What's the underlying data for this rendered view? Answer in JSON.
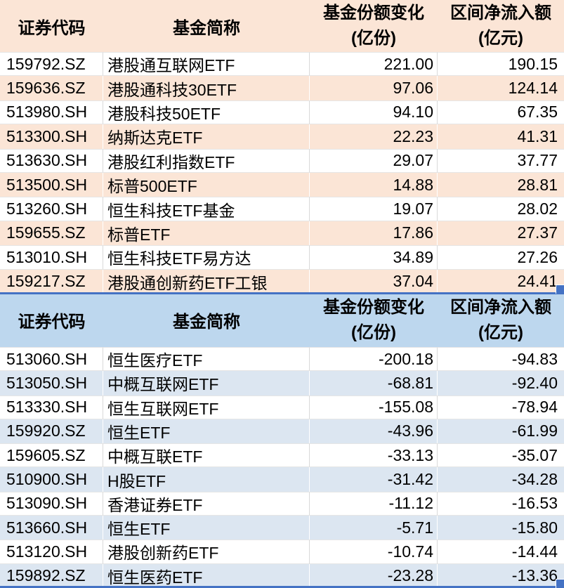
{
  "colors": {
    "orange_band": "#FBE5D6",
    "blue_band": "#DCE6F1",
    "blue_header": "#BDD7EE",
    "selection_blue": "#4472C4",
    "gridline_gray": "#D9D9D9"
  },
  "tables": [
    {
      "id": "inflow-table",
      "theme": "orange",
      "columns": [
        {
          "label": "证券代码"
        },
        {
          "label": "基金简称"
        },
        {
          "label": "基金份额变化",
          "sub": "(亿份)"
        },
        {
          "label": "区间净流入额",
          "sub": "(亿元)"
        }
      ],
      "rows": [
        [
          "159792.SZ",
          "港股通互联网ETF",
          "221.00",
          "190.15"
        ],
        [
          "159636.SZ",
          "港股通科技30ETF",
          "97.06",
          "124.14"
        ],
        [
          "513980.SH",
          "港股科技50ETF",
          "94.10",
          "67.35"
        ],
        [
          "513300.SH",
          "纳斯达克ETF",
          "22.23",
          "41.31"
        ],
        [
          "513630.SH",
          "港股红利指数ETF",
          "29.07",
          "37.77"
        ],
        [
          "513500.SH",
          "标普500ETF",
          "14.88",
          "28.81"
        ],
        [
          "513260.SH",
          "恒生科技ETF基金",
          "19.07",
          "28.02"
        ],
        [
          "159655.SZ",
          "标普ETF",
          "17.86",
          "27.37"
        ],
        [
          "513010.SH",
          "恒生科技ETF易方达",
          "34.89",
          "27.26"
        ],
        [
          "159217.SZ",
          "港股通创新药ETF工银",
          "37.04",
          "24.41"
        ]
      ]
    },
    {
      "id": "outflow-table",
      "theme": "blue",
      "columns": [
        {
          "label": "证券代码"
        },
        {
          "label": "基金简称"
        },
        {
          "label": "基金份额变化",
          "sub": "(亿份)"
        },
        {
          "label": "区间净流入额",
          "sub": "(亿元)"
        }
      ],
      "rows": [
        [
          "513060.SH",
          "恒生医疗ETF",
          "-200.18",
          "-94.83"
        ],
        [
          "513050.SH",
          "中概互联网ETF",
          "-68.81",
          "-92.40"
        ],
        [
          "513330.SH",
          "恒生互联网ETF",
          "-155.08",
          "-78.94"
        ],
        [
          "159920.SZ",
          "恒生ETF",
          "-43.96",
          "-61.99"
        ],
        [
          "159605.SZ",
          "中概互联ETF",
          "-33.13",
          "-35.07"
        ],
        [
          "510900.SH",
          "H股ETF",
          "-31.42",
          "-34.28"
        ],
        [
          "513090.SH",
          "香港证券ETF",
          "-11.12",
          "-16.53"
        ],
        [
          "513660.SH",
          "恒生ETF",
          "-5.71",
          "-15.80"
        ],
        [
          "513120.SH",
          "港股创新药ETF",
          "-10.74",
          "-14.44"
        ],
        [
          "159892.SZ",
          "恒生医药ETF",
          "-23.28",
          "-13.36"
        ]
      ]
    }
  ]
}
